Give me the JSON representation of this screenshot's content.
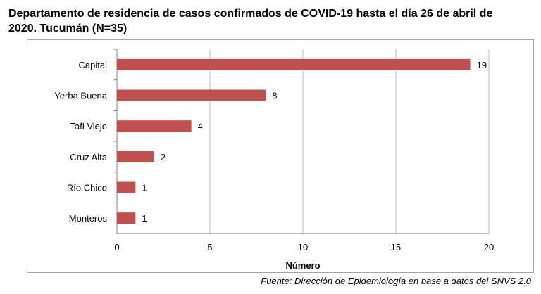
{
  "title": "Departamento de residencia de casos confirmados de COVID-19 hasta el día 26 de abril de 2020. Tucumán (N=35)",
  "source": "Fuente: Dirección de Epidemiología en base a datos del SNVS 2.0",
  "colors": {
    "bar": "#c0504d",
    "axis": "#808080",
    "grid": "#bfbfbf"
  },
  "chart_data": {
    "type": "bar",
    "orientation": "horizontal",
    "categories": [
      "Capital",
      "Yerba Buena",
      "Tafi Viejo",
      "Cruz Alta",
      "Río Chico",
      "Monteros"
    ],
    "values": [
      19,
      8,
      4,
      2,
      1,
      1
    ],
    "xlabel": "Número",
    "ylabel": "",
    "xlim": [
      0,
      20
    ],
    "xticks": [
      "0",
      "5",
      "10",
      "15",
      "20"
    ],
    "grid": "vertical",
    "legend": "none"
  }
}
